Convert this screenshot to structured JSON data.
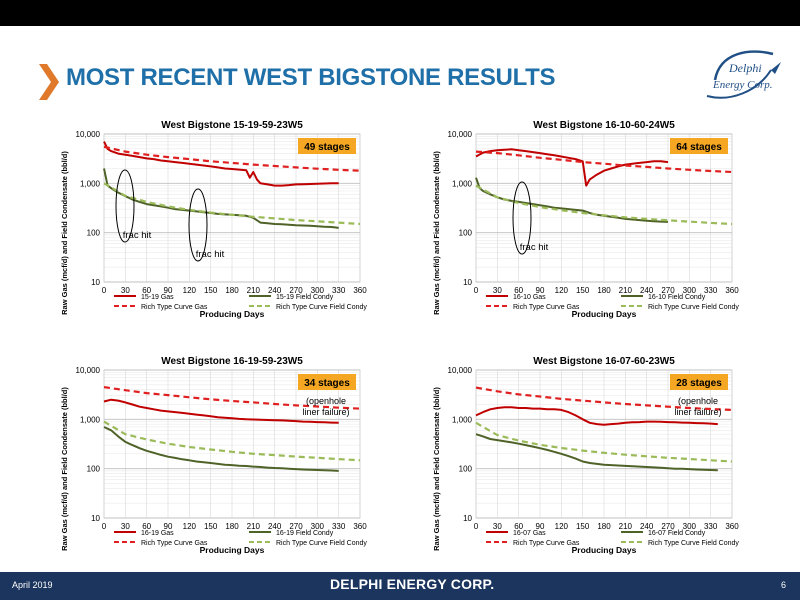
{
  "header": {
    "title": "MOST RECENT WEST BIGSTONE RESULTS",
    "logo_text_1": "Delphi",
    "logo_text_2": "Energy Corp."
  },
  "footer": {
    "date": "April 2019",
    "brand": "DELPHI ENERGY CORP.",
    "page_number": "6"
  },
  "colors": {
    "gas": "#c00000",
    "condy": "#4f6228",
    "type_gas": "#e02020",
    "type_condy": "#9bbb59",
    "stage_box": "#f5a623",
    "title_blue": "#1f6fa8",
    "chevron": "#e07a2a"
  },
  "chart_data": [
    {
      "type": "line",
      "title": "West Bigstone 15-19-59-23W5",
      "xlabel": "Producing Days",
      "ylabel": "Raw Gas (mcf/d) and Field Condensate (bbl/d)",
      "xlim": [
        0,
        360
      ],
      "ylim": [
        10,
        10000
      ],
      "yscale": "log",
      "xticks": [
        "0",
        "30",
        "60",
        "90",
        "120",
        "150",
        "180",
        "210",
        "240",
        "270",
        "300",
        "330",
        "360"
      ],
      "yticks": [
        "10",
        "100",
        "1,000",
        "10,000"
      ],
      "badge": "49 stages",
      "badge_note": "",
      "annotations": [
        "frac hit",
        "frac hit"
      ],
      "legend_position": "bottom",
      "series": [
        {
          "name": "15-19 Gas",
          "style": "gas",
          "x": [
            0,
            5,
            10,
            20,
            30,
            40,
            50,
            60,
            70,
            80,
            90,
            100,
            110,
            120,
            130,
            140,
            150,
            160,
            170,
            180,
            190,
            200,
            205,
            210,
            215,
            220,
            230,
            240,
            250,
            260,
            270,
            280,
            290,
            300,
            310,
            320,
            330
          ],
          "y": [
            7000,
            5000,
            4500,
            4000,
            3800,
            3600,
            3400,
            3200,
            3100,
            2900,
            2800,
            2700,
            2600,
            2500,
            2400,
            2300,
            2200,
            2100,
            2000,
            1950,
            1900,
            1850,
            1300,
            1700,
            1200,
            1000,
            950,
            900,
            900,
            920,
            950,
            960,
            970,
            980,
            990,
            1000,
            1000
          ]
        },
        {
          "name": "15-19 Field Condy",
          "style": "condy",
          "x": [
            0,
            5,
            10,
            20,
            30,
            40,
            50,
            60,
            70,
            80,
            90,
            100,
            110,
            120,
            130,
            140,
            150,
            160,
            170,
            180,
            190,
            200,
            210,
            220,
            230,
            240,
            250,
            260,
            270,
            280,
            290,
            300,
            310,
            320,
            330
          ],
          "y": [
            2000,
            900,
            800,
            650,
            550,
            470,
            420,
            380,
            360,
            340,
            320,
            300,
            290,
            280,
            270,
            260,
            250,
            240,
            235,
            230,
            225,
            220,
            200,
            160,
            155,
            150,
            148,
            145,
            142,
            140,
            138,
            135,
            132,
            130,
            125
          ]
        },
        {
          "name": "Rich Type Curve Gas",
          "style": "type_gas",
          "x": [
            0,
            30,
            60,
            90,
            120,
            150,
            180,
            210,
            240,
            270,
            300,
            330,
            360
          ],
          "y": [
            5500,
            4400,
            3800,
            3400,
            3100,
            2800,
            2600,
            2400,
            2250,
            2100,
            1980,
            1880,
            1800
          ]
        },
        {
          "name": "Rich Type Curve Field Condy",
          "style": "type_condy",
          "x": [
            0,
            30,
            60,
            90,
            120,
            150,
            180,
            210,
            240,
            270,
            300,
            330,
            360
          ],
          "y": [
            1000,
            560,
            420,
            340,
            290,
            255,
            230,
            210,
            195,
            180,
            170,
            160,
            150
          ]
        }
      ]
    },
    {
      "type": "line",
      "title": "West Bigstone 16-10-60-24W5",
      "xlabel": "Producing Days",
      "ylabel": "Raw Gas (mcf/d) and Field Condensate (bbl/d)",
      "xlim": [
        0,
        360
      ],
      "ylim": [
        10,
        10000
      ],
      "yscale": "log",
      "xticks": [
        "0",
        "30",
        "60",
        "90",
        "120",
        "150",
        "180",
        "210",
        "240",
        "270",
        "300",
        "330",
        "360"
      ],
      "yticks": [
        "10",
        "100",
        "1,000",
        "10,000"
      ],
      "badge": "64 stages",
      "badge_note": "",
      "annotations": [
        "frac hit"
      ],
      "legend_position": "bottom",
      "series": [
        {
          "name": "16-10 Gas",
          "style": "gas",
          "x": [
            0,
            10,
            20,
            30,
            40,
            50,
            60,
            70,
            80,
            90,
            100,
            110,
            120,
            130,
            140,
            150,
            155,
            160,
            170,
            180,
            190,
            200,
            210,
            220,
            230,
            240,
            250,
            260,
            270
          ],
          "y": [
            3500,
            4200,
            4500,
            4700,
            4800,
            4900,
            4700,
            4500,
            4300,
            4100,
            3900,
            3700,
            3500,
            3300,
            3100,
            2800,
            900,
            1200,
            1500,
            1800,
            2000,
            2200,
            2400,
            2500,
            2600,
            2700,
            2800,
            2800,
            2700
          ]
        },
        {
          "name": "16-10 Field Condy",
          "style": "condy",
          "x": [
            0,
            5,
            10,
            20,
            30,
            40,
            50,
            60,
            70,
            80,
            90,
            100,
            110,
            120,
            130,
            140,
            150,
            160,
            170,
            180,
            190,
            200,
            210,
            220,
            230,
            240,
            250,
            260,
            270
          ],
          "y": [
            1300,
            800,
            700,
            600,
            520,
            470,
            440,
            420,
            400,
            380,
            360,
            340,
            320,
            310,
            300,
            290,
            280,
            250,
            230,
            220,
            210,
            200,
            190,
            185,
            180,
            175,
            170,
            168,
            165
          ]
        },
        {
          "name": "Rich Type Curve Gas",
          "style": "type_gas",
          "x": [
            0,
            30,
            60,
            90,
            120,
            150,
            180,
            210,
            240,
            270,
            300,
            330,
            360
          ],
          "y": [
            4400,
            4100,
            3700,
            3300,
            3000,
            2700,
            2500,
            2300,
            2150,
            2000,
            1880,
            1780,
            1700
          ]
        },
        {
          "name": "Rich Type Curve Field Condy",
          "style": "type_condy",
          "x": [
            0,
            30,
            60,
            90,
            120,
            150,
            180,
            210,
            240,
            270,
            300,
            330,
            360
          ],
          "y": [
            900,
            520,
            400,
            330,
            285,
            250,
            225,
            205,
            190,
            178,
            168,
            158,
            150
          ]
        }
      ]
    },
    {
      "type": "line",
      "title": "West Bigstone 16-19-59-23W5",
      "xlabel": "Producing Days",
      "ylabel": "Raw Gas (mcf/d) and Field Condensate (bbl/d)",
      "xlim": [
        0,
        360
      ],
      "ylim": [
        10,
        10000
      ],
      "yscale": "log",
      "xticks": [
        "0",
        "30",
        "60",
        "90",
        "120",
        "150",
        "180",
        "210",
        "240",
        "270",
        "300",
        "330",
        "360"
      ],
      "yticks": [
        "10",
        "100",
        "1,000",
        "10,000"
      ],
      "badge": "34 stages",
      "badge_note": "(openhole\nliner failure)",
      "annotations": [],
      "legend_position": "bottom",
      "series": [
        {
          "name": "16-19 Gas",
          "style": "gas",
          "x": [
            0,
            10,
            20,
            30,
            40,
            50,
            60,
            70,
            80,
            90,
            100,
            110,
            120,
            130,
            140,
            150,
            160,
            170,
            180,
            190,
            200,
            210,
            220,
            230,
            240,
            250,
            260,
            270,
            280,
            290,
            300,
            310,
            320,
            330
          ],
          "y": [
            2300,
            2500,
            2400,
            2200,
            2000,
            1800,
            1700,
            1600,
            1500,
            1450,
            1400,
            1350,
            1300,
            1250,
            1200,
            1150,
            1100,
            1080,
            1050,
            1020,
            1000,
            990,
            980,
            970,
            960,
            950,
            940,
            920,
            900,
            890,
            880,
            870,
            860,
            850
          ]
        },
        {
          "name": "16-19 Field Condy",
          "style": "condy",
          "x": [
            0,
            10,
            20,
            30,
            40,
            50,
            60,
            70,
            80,
            90,
            100,
            110,
            120,
            130,
            140,
            150,
            160,
            170,
            180,
            190,
            200,
            210,
            220,
            230,
            240,
            250,
            260,
            270,
            280,
            290,
            300,
            310,
            320,
            330
          ],
          "y": [
            700,
            600,
            450,
            350,
            300,
            260,
            230,
            210,
            190,
            175,
            165,
            155,
            148,
            140,
            135,
            130,
            125,
            120,
            118,
            115,
            113,
            110,
            108,
            105,
            103,
            102,
            100,
            98,
            96,
            95,
            94,
            93,
            92,
            90
          ]
        },
        {
          "name": "Rich Type Curve Gas",
          "style": "type_gas",
          "x": [
            0,
            30,
            60,
            90,
            120,
            150,
            180,
            210,
            240,
            270,
            300,
            330,
            360
          ],
          "y": [
            4500,
            3900,
            3400,
            3100,
            2800,
            2550,
            2350,
            2200,
            2050,
            1920,
            1820,
            1720,
            1650
          ]
        },
        {
          "name": "Rich Type Curve Field Condy",
          "style": "type_condy",
          "x": [
            0,
            30,
            60,
            90,
            120,
            150,
            180,
            210,
            240,
            270,
            300,
            330,
            360
          ],
          "y": [
            900,
            500,
            390,
            320,
            275,
            245,
            220,
            200,
            188,
            176,
            166,
            156,
            148
          ]
        }
      ]
    },
    {
      "type": "line",
      "title": "West Bigstone 16-07-60-23W5",
      "xlabel": "Producing Days",
      "ylabel": "Raw Gas (mcf/d) and Field Condensate (bbl/d)",
      "xlim": [
        0,
        360
      ],
      "ylim": [
        10,
        10000
      ],
      "yscale": "log",
      "xticks": [
        "0",
        "30",
        "60",
        "90",
        "120",
        "150",
        "180",
        "210",
        "240",
        "270",
        "300",
        "330",
        "360"
      ],
      "yticks": [
        "10",
        "100",
        "1,000",
        "10,000"
      ],
      "badge": "28 stages",
      "badge_note": "(openhole\nliner failure)",
      "annotations": [],
      "legend_position": "bottom",
      "series": [
        {
          "name": "16-07 Gas",
          "style": "gas",
          "x": [
            0,
            10,
            20,
            30,
            40,
            50,
            60,
            70,
            80,
            90,
            100,
            110,
            120,
            130,
            140,
            150,
            160,
            170,
            180,
            190,
            200,
            210,
            220,
            230,
            240,
            250,
            260,
            270,
            280,
            290,
            300,
            310,
            320,
            330,
            340
          ],
          "y": [
            1200,
            1400,
            1600,
            1700,
            1750,
            1750,
            1700,
            1700,
            1650,
            1650,
            1600,
            1600,
            1550,
            1400,
            1200,
            1000,
            850,
            800,
            780,
            800,
            820,
            850,
            870,
            880,
            900,
            900,
            890,
            880,
            870,
            860,
            850,
            840,
            830,
            820,
            800
          ]
        },
        {
          "name": "16-07 Field Condy",
          "style": "condy",
          "x": [
            0,
            10,
            20,
            30,
            40,
            50,
            60,
            70,
            80,
            90,
            100,
            110,
            120,
            130,
            140,
            150,
            160,
            170,
            180,
            190,
            200,
            210,
            220,
            230,
            240,
            250,
            260,
            270,
            280,
            290,
            300,
            310,
            320,
            330,
            340
          ],
          "y": [
            500,
            450,
            400,
            380,
            360,
            340,
            320,
            300,
            280,
            260,
            240,
            220,
            200,
            180,
            160,
            140,
            130,
            125,
            120,
            118,
            116,
            114,
            112,
            110,
            108,
            106,
            104,
            102,
            100,
            100,
            98,
            96,
            95,
            94,
            93
          ]
        },
        {
          "name": "Rich Type Curve Gas",
          "style": "type_gas",
          "x": [
            0,
            30,
            60,
            90,
            120,
            150,
            180,
            210,
            240,
            270,
            300,
            330,
            360
          ],
          "y": [
            4400,
            3700,
            3200,
            2900,
            2600,
            2400,
            2200,
            2050,
            1920,
            1800,
            1700,
            1620,
            1550
          ]
        },
        {
          "name": "Rich Type Curve Field Condy",
          "style": "type_condy",
          "x": [
            0,
            30,
            60,
            90,
            120,
            150,
            180,
            210,
            240,
            270,
            300,
            330,
            360
          ],
          "y": [
            850,
            480,
            370,
            305,
            262,
            232,
            210,
            192,
            178,
            166,
            157,
            148,
            140
          ]
        }
      ]
    }
  ]
}
